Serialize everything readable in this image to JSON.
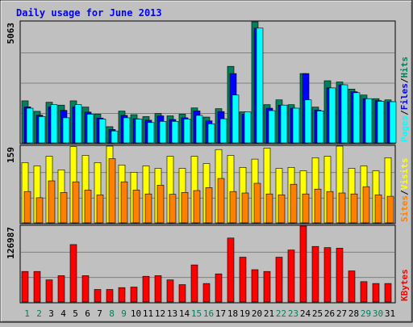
{
  "chart_data": {
    "type": "bar",
    "title": "Daily usage for June 2013",
    "categories": [
      "1",
      "2",
      "3",
      "4",
      "5",
      "6",
      "7",
      "8",
      "9",
      "10",
      "11",
      "12",
      "13",
      "14",
      "15",
      "16",
      "17",
      "18",
      "19",
      "20",
      "21",
      "22",
      "23",
      "24",
      "25",
      "26",
      "27",
      "28",
      "29",
      "30",
      "31"
    ],
    "weekend_days": [
      "1",
      "2",
      "8",
      "9",
      "15",
      "16",
      "22",
      "23",
      "29",
      "30"
    ],
    "colors": {
      "background": "#c0c0c0",
      "title": "#0000ff",
      "weekday_label": "#000000",
      "weekend_label": "#00805c",
      "hits": "#00805c",
      "files": "#0000ff",
      "pages": "#00ffff",
      "visits": "#ffff00",
      "sites": "#ff8000",
      "kbytes": "#ff0000"
    },
    "panels": [
      {
        "id": "hits-files-pages",
        "max_label": "5063",
        "ylim": [
          0,
          5063
        ],
        "legend": [
          {
            "label": "Pages",
            "color": "#00ffff"
          },
          {
            "label": "/",
            "color": "#000000"
          },
          {
            "label": "Files",
            "color": "#0000ff"
          },
          {
            "label": "/",
            "color": "#000000"
          },
          {
            "label": "Hits",
            "color": "#00805c"
          }
        ],
        "series": [
          {
            "name": "Hits",
            "color": "#00805c",
            "values": [
              1760,
              1320,
              1700,
              1580,
              1760,
              1500,
              1200,
              680,
              1330,
              1180,
              1100,
              1230,
              1130,
              1200,
              1460,
              1080,
              1430,
              3200,
              1300,
              5063,
              1600,
              1800,
              1600,
              2900,
              1500,
              2600,
              2550,
              2250,
              2000,
              1850,
              1800
            ]
          },
          {
            "name": "Files",
            "color": "#0000ff",
            "values": [
              1510,
              1160,
              1510,
              1360,
              1510,
              1290,
              1040,
              560,
              1150,
              1010,
              950,
              1130,
              980,
              1050,
              1340,
              920,
              1310,
              2900,
              1200,
              4800,
              1450,
              1580,
              1450,
              2900,
              1370,
              2300,
              2430,
              2140,
              1850,
              1770,
              1720
            ]
          },
          {
            "name": "Pages",
            "color": "#00ffff",
            "values": [
              1450,
              1100,
              1600,
              1050,
              1600,
              1200,
              1000,
              500,
              1050,
              1000,
              850,
              900,
              900,
              1000,
              1150,
              800,
              1010,
              2000,
              1300,
              4800,
              1350,
              1580,
              1450,
              1800,
              1340,
              2300,
              2430,
              2100,
              1850,
              1740,
              1720
            ]
          }
        ]
      },
      {
        "id": "visits-sites",
        "max_label": "159",
        "ylim": [
          0,
          159
        ],
        "legend": [
          {
            "label": "Sites",
            "color": "#ff8000"
          },
          {
            "label": "/",
            "color": "#000000"
          },
          {
            "label": "Visits",
            "color": "#ffff00"
          }
        ],
        "series": [
          {
            "name": "Visits",
            "color": "#ffff00",
            "values": [
              125,
              118,
              138,
              110,
              158,
              140,
              125,
              159,
              120,
              105,
              118,
              113,
              138,
              113,
              138,
              123,
              152,
              140,
              115,
              132,
              155,
              113,
              115,
              108,
              135,
              138,
              159,
              113,
              118,
              108,
              135
            ]
          },
          {
            "name": "Sites",
            "color": "#ff8000",
            "values": [
              65,
              52,
              87,
              63,
              85,
              68,
              58,
              133,
              85,
              68,
              60,
              78,
              59,
              63,
              67,
              73,
              92,
              65,
              62,
              82,
              60,
              58,
              80,
              60,
              70,
              65,
              62,
              60,
              75,
              58,
              55
            ]
          }
        ]
      },
      {
        "id": "kbytes",
        "max_label": "126987",
        "ylim": [
          0,
          126987
        ],
        "legend": [
          {
            "label": "KBytes",
            "color": "#ff0000"
          }
        ],
        "series": [
          {
            "name": "KBytes",
            "color": "#ff0000",
            "values": [
              51000,
              51000,
              37000,
              44000,
              96000,
              44000,
              21000,
              21000,
              24000,
              25000,
              43000,
              44000,
              37000,
              29000,
              62000,
              31000,
              47000,
              107000,
              75000,
              54000,
              51000,
              75000,
              87000,
              126987,
              93000,
              91000,
              90000,
              52000,
              34000,
              31000,
              31000
            ]
          }
        ]
      }
    ]
  }
}
